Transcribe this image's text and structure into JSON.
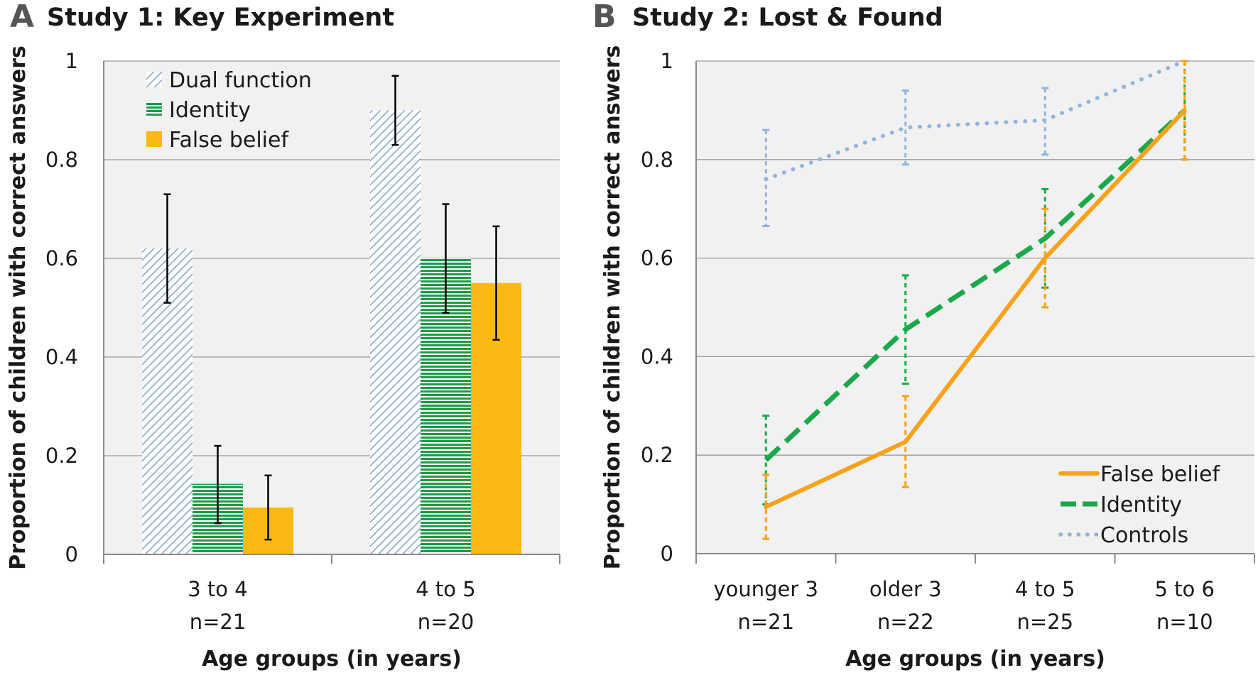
{
  "panels": [
    {
      "letter": "A",
      "title": "Study 1: Key Experiment",
      "ylabel": "Proportion of children with correct answers",
      "xlabel": "Age groups (in years)"
    },
    {
      "letter": "B",
      "title": "Study 2: Lost & Found",
      "ylabel": "Proportion of children with correct answers",
      "xlabel": "Age groups (in years)"
    }
  ],
  "colors": {
    "dual": "#7fa3c4",
    "identity": "#1f9a4a",
    "false_belief": "#fdb913",
    "false_belief_line": "#f7a21b",
    "identity_line": "#1aa84b",
    "controls_line": "#90b4dc",
    "plot_bg": "#f1f1f1",
    "grid": "#9a9a9a"
  },
  "chart_data": [
    {
      "type": "bar",
      "title": "Study 1: Key Experiment",
      "xlabel": "Age groups (in years)",
      "ylabel": "Proportion of children with correct answers",
      "ylim": [
        0,
        1
      ],
      "yticks": [
        "0",
        "0.2",
        "0.4",
        "0.6",
        "0.8",
        "1"
      ],
      "categories": [
        [
          "3 to 4",
          "n=21"
        ],
        [
          "4 to 5",
          "n=20"
        ]
      ],
      "series": [
        {
          "name": "Dual function",
          "values": [
            0.62,
            0.9
          ],
          "err_low": [
            0.51,
            0.83
          ],
          "err_high": [
            0.73,
            0.97
          ]
        },
        {
          "name": "Identity",
          "values": [
            0.143,
            0.6
          ],
          "err_low": [
            0.063,
            0.49
          ],
          "err_high": [
            0.22,
            0.71
          ]
        },
        {
          "name": "False belief",
          "values": [
            0.095,
            0.55
          ],
          "err_low": [
            0.03,
            0.435
          ],
          "err_high": [
            0.16,
            0.665
          ]
        }
      ],
      "grid": true,
      "legend_position": "top-left"
    },
    {
      "type": "line",
      "title": "Study 2: Lost & Found",
      "xlabel": "Age groups (in years)",
      "ylabel": "Proportion of children with correct answers",
      "ylim": [
        0,
        1
      ],
      "yticks": [
        "0",
        "0.2",
        "0.4",
        "0.6",
        "0.8",
        "1"
      ],
      "categories": [
        [
          "younger 3",
          "n=21"
        ],
        [
          "older 3",
          "n=22"
        ],
        [
          "4 to 5",
          "n=25"
        ],
        [
          "5 to 6",
          "n=10"
        ]
      ],
      "series": [
        {
          "name": "False belief",
          "values": [
            0.095,
            0.227,
            0.6,
            0.9
          ],
          "err_low": [
            0.03,
            0.135,
            0.5,
            0.8
          ],
          "err_high": [
            0.16,
            0.32,
            0.7,
            1.0
          ]
        },
        {
          "name": "Identity",
          "values": [
            0.19,
            0.455,
            0.64,
            0.9
          ],
          "err_low": [
            0.1,
            0.345,
            0.54,
            0.8
          ],
          "err_high": [
            0.28,
            0.565,
            0.74,
            1.0
          ]
        },
        {
          "name": "Controls",
          "values": [
            0.76,
            0.865,
            0.88,
            1.0
          ],
          "err_low": [
            0.665,
            0.79,
            0.81,
            1.0
          ],
          "err_high": [
            0.86,
            0.94,
            0.945,
            1.0
          ]
        }
      ],
      "grid": true,
      "legend_position": "bottom-right"
    }
  ]
}
